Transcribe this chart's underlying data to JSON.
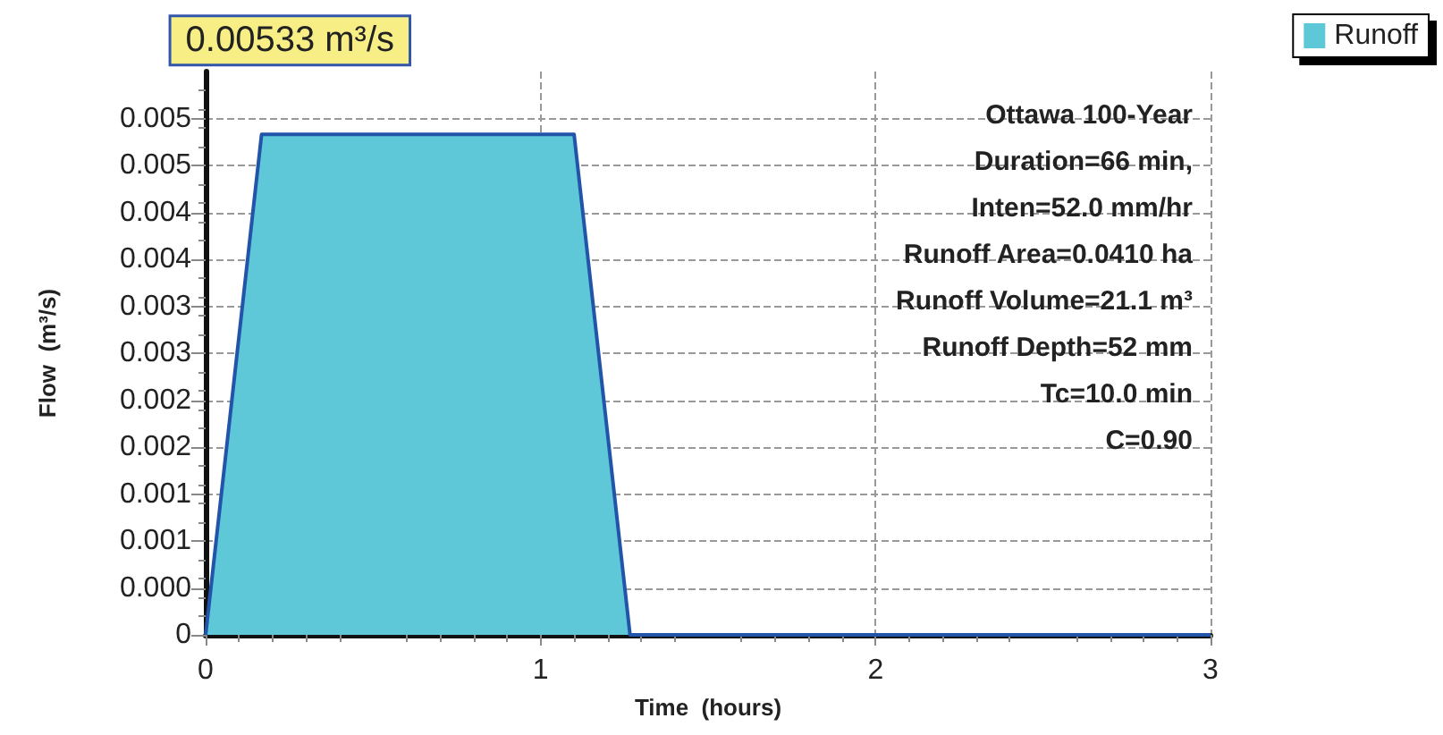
{
  "chart_data": {
    "type": "area",
    "xlabel": "Time  (hours)",
    "ylabel": "Flow  (m³/s)",
    "x": [
      0,
      0.167,
      1.1,
      1.267,
      3
    ],
    "series": [
      {
        "name": "Runoff",
        "color": "#5ec8d8",
        "values": [
          0,
          0.00533,
          0.00533,
          0,
          0
        ]
      }
    ],
    "xlim": [
      0,
      3
    ],
    "xticks": [
      0,
      1,
      2,
      3
    ],
    "ylim": [
      0,
      0.006
    ],
    "yticks": [
      0,
      {
        "value": 0.0005,
        "label": "0.000"
      },
      {
        "value": 0.001,
        "label": "0.001"
      },
      {
        "value": 0.0015,
        "label": "0.001"
      },
      {
        "value": 0.002,
        "label": "0.002"
      },
      {
        "value": 0.0025,
        "label": "0.002"
      },
      {
        "value": 0.003,
        "label": "0.003"
      },
      {
        "value": 0.0035,
        "label": "0.003"
      },
      {
        "value": 0.004,
        "label": "0.004"
      },
      {
        "value": 0.0045,
        "label": "0.004"
      },
      {
        "value": 0.005,
        "label": "0.005"
      },
      {
        "value": 0.0055,
        "label": "0.005"
      }
    ],
    "annotations": [
      {
        "text": "0.00533 m³/s",
        "x": 0.167,
        "y": 0.00533
      },
      "Ottawa 100-Year",
      "Duration=66 min,",
      "Inten=52.0 mm/hr",
      "Runoff Area=0.0410 ha",
      "Runoff Volume=21.1 m³",
      "Runoff Depth=52 mm",
      "Tc=10.0 min",
      "C=0.90"
    ],
    "grid": true,
    "legend": "top right",
    "line_style": "solid",
    "marker": "none"
  }
}
